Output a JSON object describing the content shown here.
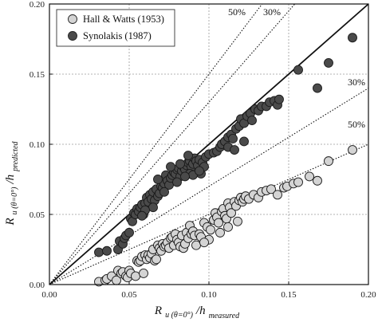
{
  "chart_data": {
    "type": "scatter",
    "xlim": [
      0,
      0.2
    ],
    "ylim": [
      0,
      0.2
    ],
    "x_ticks": [
      0.0,
      0.05,
      0.1,
      0.15,
      0.2
    ],
    "y_ticks": [
      0.0,
      0.05,
      0.1,
      0.15,
      0.2
    ],
    "x_tick_labels": [
      "0.00",
      "0.05",
      "0.10",
      "0.15",
      "0.20"
    ],
    "y_tick_labels": [
      "0.00",
      "0.05",
      "0.10",
      "0.15",
      "0.20"
    ],
    "grid": true,
    "xlabel": {
      "main": "R",
      "subscript": "u (θ=0°)",
      "rest": "/h",
      "rest_subscript": "measured"
    },
    "ylabel": {
      "main": "R",
      "subscript": "u (θ=0°)",
      "rest": "/h",
      "rest_subscript": "predicted"
    },
    "legend": {
      "placement": "top-left",
      "entries": [
        "Hall & Watts (1953)",
        "Synolakis (1987)"
      ]
    },
    "reference_lines": [
      {
        "slope": 1.0,
        "style": "solid",
        "label": ""
      },
      {
        "slope": 1.5,
        "style": "dotted",
        "label": "50%"
      },
      {
        "slope": 1.3,
        "style": "dotted",
        "label": "30%"
      },
      {
        "slope": 0.7,
        "style": "dotted",
        "label": "30%"
      },
      {
        "slope": 0.5,
        "style": "dotted",
        "label": "50%"
      }
    ],
    "series": [
      {
        "name": "Hall & Watts (1953)",
        "color": "#d4d4d4",
        "points": [
          [
            0.031,
            0.002
          ],
          [
            0.035,
            0.003
          ],
          [
            0.036,
            0.004
          ],
          [
            0.039,
            0.006
          ],
          [
            0.042,
            0.003
          ],
          [
            0.043,
            0.01
          ],
          [
            0.045,
            0.008
          ],
          [
            0.046,
            0.009
          ],
          [
            0.048,
            0.006
          ],
          [
            0.049,
            0.005
          ],
          [
            0.05,
            0.01
          ],
          [
            0.051,
            0.008
          ],
          [
            0.054,
            0.006
          ],
          [
            0.055,
            0.017
          ],
          [
            0.056,
            0.016
          ],
          [
            0.057,
            0.017
          ],
          [
            0.058,
            0.02
          ],
          [
            0.059,
            0.008
          ],
          [
            0.06,
            0.021
          ],
          [
            0.061,
            0.018
          ],
          [
            0.062,
            0.021
          ],
          [
            0.063,
            0.019
          ],
          [
            0.064,
            0.022
          ],
          [
            0.065,
            0.025
          ],
          [
            0.066,
            0.017
          ],
          [
            0.067,
            0.018
          ],
          [
            0.068,
            0.028
          ],
          [
            0.069,
            0.026
          ],
          [
            0.07,
            0.024
          ],
          [
            0.071,
            0.029
          ],
          [
            0.072,
            0.027
          ],
          [
            0.073,
            0.028
          ],
          [
            0.074,
            0.03
          ],
          [
            0.075,
            0.026
          ],
          [
            0.076,
            0.033
          ],
          [
            0.077,
            0.034
          ],
          [
            0.078,
            0.028
          ],
          [
            0.079,
            0.036
          ],
          [
            0.08,
            0.032
          ],
          [
            0.081,
            0.03
          ],
          [
            0.082,
            0.027
          ],
          [
            0.083,
            0.035
          ],
          [
            0.084,
            0.026
          ],
          [
            0.085,
            0.029
          ],
          [
            0.086,
            0.037
          ],
          [
            0.087,
            0.033
          ],
          [
            0.088,
            0.042
          ],
          [
            0.089,
            0.036
          ],
          [
            0.09,
            0.038
          ],
          [
            0.091,
            0.035
          ],
          [
            0.092,
            0.028
          ],
          [
            0.094,
            0.036
          ],
          [
            0.095,
            0.034
          ],
          [
            0.097,
            0.044
          ],
          [
            0.099,
            0.041
          ],
          [
            0.101,
            0.039
          ],
          [
            0.103,
            0.046
          ],
          [
            0.104,
            0.051
          ],
          [
            0.105,
            0.048
          ],
          [
            0.106,
            0.044
          ],
          [
            0.108,
            0.052
          ],
          [
            0.109,
            0.054
          ],
          [
            0.11,
            0.049
          ],
          [
            0.111,
            0.047
          ],
          [
            0.112,
            0.058
          ],
          [
            0.113,
            0.055
          ],
          [
            0.114,
            0.051
          ],
          [
            0.116,
            0.059
          ],
          [
            0.117,
            0.056
          ],
          [
            0.119,
            0.06
          ],
          [
            0.12,
            0.062
          ],
          [
            0.121,
            0.059
          ],
          [
            0.122,
            0.061
          ],
          [
            0.123,
            0.063
          ],
          [
            0.125,
            0.061
          ],
          [
            0.128,
            0.064
          ],
          [
            0.131,
            0.062
          ],
          [
            0.133,
            0.066
          ],
          [
            0.136,
            0.067
          ],
          [
            0.139,
            0.068
          ],
          [
            0.143,
            0.064
          ],
          [
            0.147,
            0.069
          ],
          [
            0.149,
            0.07
          ],
          [
            0.153,
            0.072
          ],
          [
            0.156,
            0.073
          ],
          [
            0.163,
            0.077
          ],
          [
            0.168,
            0.074
          ],
          [
            0.175,
            0.088
          ],
          [
            0.19,
            0.096
          ],
          [
            0.118,
            0.045
          ],
          [
            0.107,
            0.037
          ],
          [
            0.1,
            0.032
          ],
          [
            0.097,
            0.03
          ],
          [
            0.112,
            0.041
          ]
        ]
      },
      {
        "name": "Synolakis (1987)",
        "color": "#4a4a4a",
        "points": [
          [
            0.031,
            0.023
          ],
          [
            0.036,
            0.024
          ],
          [
            0.043,
            0.025
          ],
          [
            0.044,
            0.031
          ],
          [
            0.046,
            0.029
          ],
          [
            0.047,
            0.033
          ],
          [
            0.048,
            0.035
          ],
          [
            0.05,
            0.037
          ],
          [
            0.051,
            0.047
          ],
          [
            0.052,
            0.045
          ],
          [
            0.053,
            0.051
          ],
          [
            0.054,
            0.05
          ],
          [
            0.055,
            0.054
          ],
          [
            0.056,
            0.052
          ],
          [
            0.057,
            0.055
          ],
          [
            0.058,
            0.057
          ],
          [
            0.059,
            0.05
          ],
          [
            0.06,
            0.058
          ],
          [
            0.061,
            0.062
          ],
          [
            0.062,
            0.059
          ],
          [
            0.063,
            0.064
          ],
          [
            0.064,
            0.061
          ],
          [
            0.065,
            0.066
          ],
          [
            0.066,
            0.06
          ],
          [
            0.067,
            0.068
          ],
          [
            0.068,
            0.063
          ],
          [
            0.069,
            0.065
          ],
          [
            0.07,
            0.07
          ],
          [
            0.071,
            0.069
          ],
          [
            0.072,
            0.072
          ],
          [
            0.073,
            0.078
          ],
          [
            0.074,
            0.074
          ],
          [
            0.075,
            0.071
          ],
          [
            0.076,
            0.076
          ],
          [
            0.077,
            0.078
          ],
          [
            0.078,
            0.08
          ],
          [
            0.079,
            0.079
          ],
          [
            0.08,
            0.082
          ],
          [
            0.081,
            0.083
          ],
          [
            0.082,
            0.077
          ],
          [
            0.083,
            0.081
          ],
          [
            0.084,
            0.084
          ],
          [
            0.085,
            0.082
          ],
          [
            0.086,
            0.085
          ],
          [
            0.087,
            0.087
          ],
          [
            0.088,
            0.088
          ],
          [
            0.089,
            0.084
          ],
          [
            0.09,
            0.086
          ],
          [
            0.091,
            0.09
          ],
          [
            0.092,
            0.088
          ],
          [
            0.093,
            0.085
          ],
          [
            0.094,
            0.089
          ],
          [
            0.095,
            0.079
          ],
          [
            0.096,
            0.087
          ],
          [
            0.088,
            0.079
          ],
          [
            0.09,
            0.078
          ],
          [
            0.098,
            0.091
          ],
          [
            0.1,
            0.093
          ],
          [
            0.103,
            0.094
          ],
          [
            0.105,
            0.095
          ],
          [
            0.107,
            0.098
          ],
          [
            0.108,
            0.1
          ],
          [
            0.11,
            0.102
          ],
          [
            0.112,
            0.105
          ],
          [
            0.114,
            0.107
          ],
          [
            0.115,
            0.104
          ],
          [
            0.117,
            0.111
          ],
          [
            0.119,
            0.113
          ],
          [
            0.12,
            0.118
          ],
          [
            0.122,
            0.115
          ],
          [
            0.124,
            0.12
          ],
          [
            0.126,
            0.122
          ],
          [
            0.127,
            0.117
          ],
          [
            0.129,
            0.125
          ],
          [
            0.131,
            0.124
          ],
          [
            0.133,
            0.127
          ],
          [
            0.136,
            0.127
          ],
          [
            0.138,
            0.13
          ],
          [
            0.141,
            0.131
          ],
          [
            0.143,
            0.128
          ],
          [
            0.144,
            0.132
          ],
          [
            0.156,
            0.153
          ],
          [
            0.168,
            0.14
          ],
          [
            0.175,
            0.158
          ],
          [
            0.19,
            0.176
          ],
          [
            0.097,
            0.084
          ],
          [
            0.094,
            0.081
          ],
          [
            0.112,
            0.098
          ],
          [
            0.116,
            0.096
          ],
          [
            0.122,
            0.102
          ],
          [
            0.065,
            0.055
          ],
          [
            0.072,
            0.066
          ],
          [
            0.08,
            0.073
          ],
          [
            0.085,
            0.077
          ],
          [
            0.068,
            0.075
          ],
          [
            0.06,
            0.053
          ],
          [
            0.058,
            0.049
          ],
          [
            0.076,
            0.084
          ],
          [
            0.082,
            0.086
          ],
          [
            0.087,
            0.092
          ]
        ]
      }
    ]
  }
}
